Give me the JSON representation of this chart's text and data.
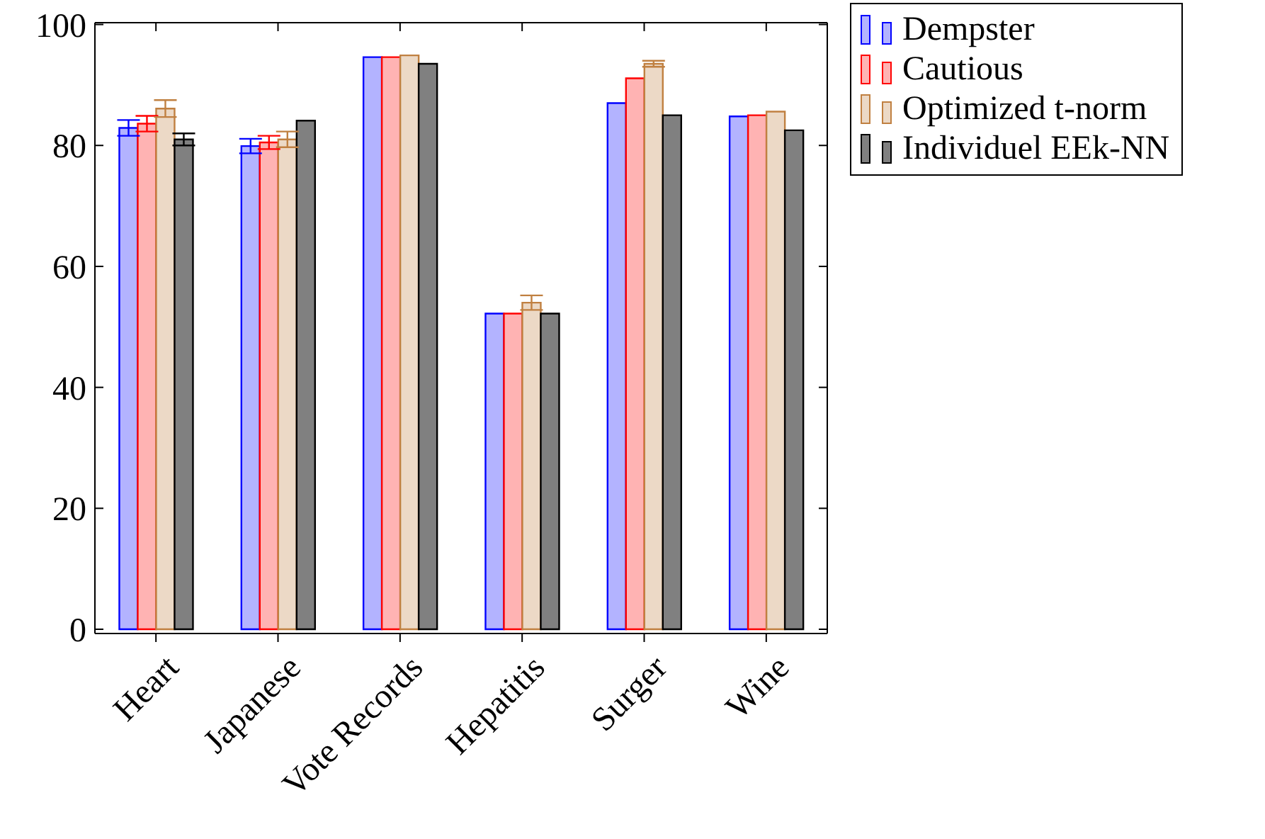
{
  "chart_data": {
    "type": "bar",
    "categories": [
      "Heart",
      "Japanese",
      "Vote Records",
      "Hepatitis",
      "Surger",
      "Wine"
    ],
    "series": [
      {
        "name": "Dempster",
        "color": "#b3b3ff",
        "values": [
          82.9,
          79.9,
          94.6,
          52.2,
          87.0,
          84.8
        ],
        "errors": [
          1.3,
          1.2,
          null,
          null,
          null,
          null
        ]
      },
      {
        "name": "Cautious",
        "color": "#ffb3b3",
        "values": [
          83.6,
          80.5,
          94.6,
          52.2,
          91.1,
          85.0
        ],
        "errors": [
          1.3,
          1.1,
          null,
          null,
          null,
          null
        ]
      },
      {
        "name": "Optimized t-norm",
        "color": "#ecd9c6",
        "values": [
          86.1,
          81.0,
          94.9,
          54.0,
          93.5,
          85.6
        ],
        "errors": [
          1.4,
          1.3,
          null,
          1.2,
          0.5,
          null
        ]
      },
      {
        "name": "Individuel EEk-NN",
        "color": "#808080",
        "values": [
          81.0,
          84.1,
          93.5,
          52.2,
          85.0,
          82.5
        ],
        "errors": [
          1.0,
          null,
          null,
          null,
          null,
          null
        ]
      }
    ],
    "ylim": [
      -0.7,
      100.3
    ],
    "yticks": [
      0,
      20,
      40,
      60,
      80,
      100
    ],
    "legend": "top right"
  }
}
